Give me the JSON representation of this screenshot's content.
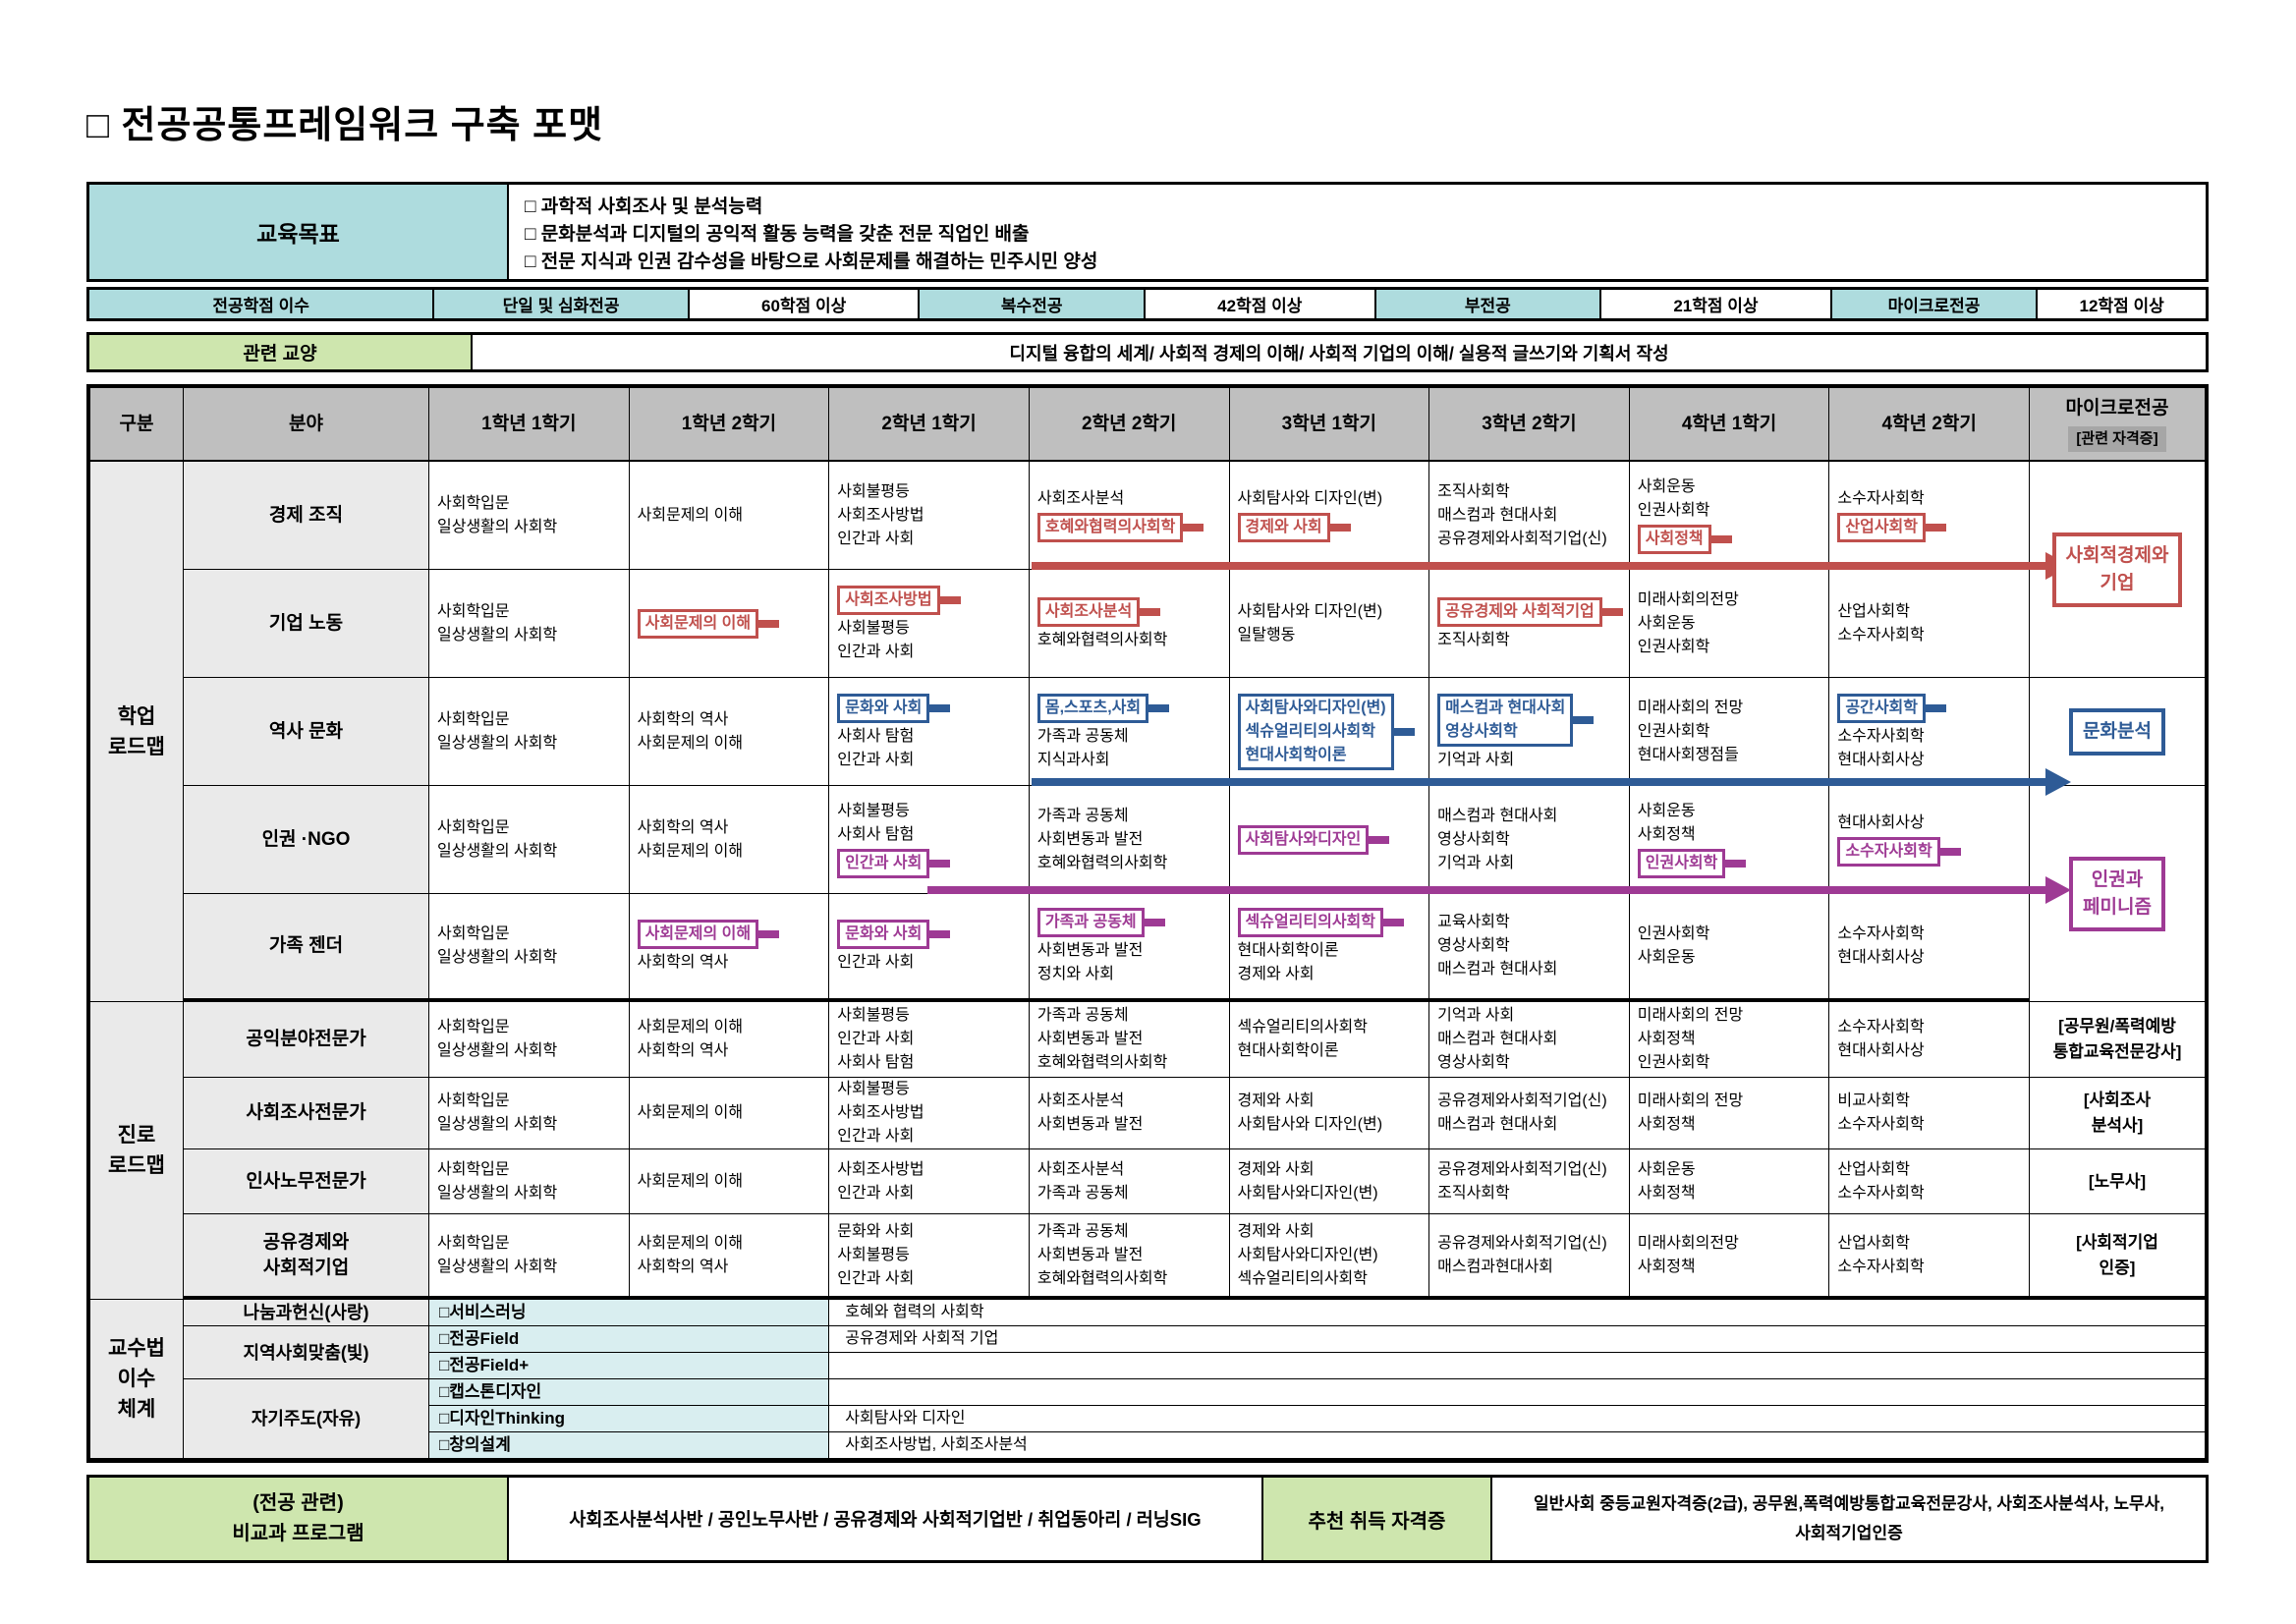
{
  "page": {
    "title": "□ 전공공통프레임워크 구축 포맷"
  },
  "colors": {
    "red": "#C0504D",
    "blue": "#2E5B96",
    "magenta": "#9E3A94",
    "teal": "#AEDCDE",
    "light_teal": "#D9EEF0",
    "green": "#CEE6AE",
    "header_gray": "#BFBFBF",
    "cell_gray": "#EAEAEA",
    "badge_gray": "#A6A6A6"
  },
  "goals": {
    "label": "교육목표",
    "items": [
      "□ 과학적 사회조사 및 분석능력",
      "□ 문화분석과 디지털의 공익적 활동 능력을 갖춘 전문 직업인 배출",
      "□ 전문 지식과 인권 감수성을 바탕으로 사회문제를 해결하는 민주시민 양성"
    ]
  },
  "credits": {
    "cells": [
      {
        "t": "전공학점 이수",
        "teal": true
      },
      {
        "t": "단일 및 심화전공",
        "teal": true
      },
      {
        "t": "60학점 이상"
      },
      {
        "t": "복수전공",
        "teal": true
      },
      {
        "t": "42학점 이상"
      },
      {
        "t": "부전공",
        "teal": true
      },
      {
        "t": "21학점 이상"
      },
      {
        "t": "마이크로전공",
        "teal": true
      },
      {
        "t": "12학점 이상"
      }
    ]
  },
  "liberal": {
    "label": "관련 교양",
    "text": "디지털 융합의 세계/ 사회적 경제의 이해/ 사회적 기업의 이해/ 실용적 글쓰기와 기획서 작성"
  },
  "roadmap": {
    "headers": [
      "구분",
      "분야",
      "1학년 1학기",
      "1학년 2학기",
      "2학년 1학기",
      "2학년 2학기",
      "3학년 1학기",
      "3학년 2학기",
      "4학년 1학기",
      "4학년 2학기"
    ],
    "micro_header": {
      "line1": "마이크로전공",
      "line2": "[관련 자격증]"
    },
    "sections": [
      {
        "label_lines": [
          "학업",
          "로드맵"
        ],
        "rows": [
          {
            "field_lines": [
              "경제 조직"
            ],
            "cells": [
              [
                {
                  "t": "사회학입문"
                },
                {
                  "t": "일상생활의 사회학"
                }
              ],
              [
                {
                  "t": "사회문제의 이해"
                }
              ],
              [
                {
                  "t": "사회불평등"
                },
                {
                  "t": "사회조사방법"
                },
                {
                  "t": "인간과 사회"
                }
              ],
              [
                {
                  "t": "사회조사분석"
                },
                {
                  "t": "호혜와협력의사회학",
                  "hl": "red"
                }
              ],
              [
                {
                  "t": "사회탐사와 디자인(변)"
                },
                {
                  "t": "경제와 사회",
                  "hl": "red"
                }
              ],
              [
                {
                  "t": "조직사회학"
                },
                {
                  "t": "매스컴과 현대사회"
                },
                {
                  "t": "공유경제와사회적기업(신)"
                }
              ],
              [
                {
                  "t": "사회운동"
                },
                {
                  "t": "인권사회학"
                },
                {
                  "t": "사회정책",
                  "hl": "red"
                }
              ],
              [
                {
                  "t": "소수자사회학"
                },
                {
                  "t": "산업사회학",
                  "hl": "red"
                }
              ]
            ],
            "micro": {
              "style": "box",
              "color": "red",
              "lines": [
                "사회적경제와",
                "기업"
              ],
              "span": 2
            }
          },
          {
            "field_lines": [
              "기업 노동"
            ],
            "cells": [
              [
                {
                  "t": "사회학입문"
                },
                {
                  "t": "일상생활의 사회학"
                }
              ],
              [
                {
                  "t": "사회문제의 이해",
                  "hl": "red"
                }
              ],
              [
                {
                  "t": "사회조사방법",
                  "hl": "red"
                },
                {
                  "t": "사회불평등"
                },
                {
                  "t": "인간과 사회"
                }
              ],
              [
                {
                  "t": "사회조사분석",
                  "hl": "red"
                },
                {
                  "t": "호혜와협력의사회학"
                }
              ],
              [
                {
                  "t": "사회탐사와 디자인(변)"
                },
                {
                  "t": "일탈행동"
                }
              ],
              [
                {
                  "t": "공유경제와 사회적기업",
                  "hl": "red"
                },
                {
                  "t": "조직사회학"
                }
              ],
              [
                {
                  "t": "미래사회의전망"
                },
                {
                  "t": "사회운동"
                },
                {
                  "t": "인권사회학"
                }
              ],
              [
                {
                  "t": "산업사회학"
                },
                {
                  "t": "소수자사회학"
                }
              ]
            ],
            "micro": null
          },
          {
            "field_lines": [
              "역사 문화"
            ],
            "cells": [
              [
                {
                  "t": "사회학입문"
                },
                {
                  "t": "일상생활의 사회학"
                }
              ],
              [
                {
                  "t": "사회학의 역사"
                },
                {
                  "t": "사회문제의 이해"
                }
              ],
              [
                {
                  "t": "문화와 사회",
                  "hl": "blue"
                },
                {
                  "t": "사회사 탐험"
                },
                {
                  "t": "인간과 사회"
                }
              ],
              [
                {
                  "t": "몸,스포츠,사회",
                  "hl": "blue"
                },
                {
                  "t": "가족과 공동체"
                },
                {
                  "t": "지식과사회"
                }
              ],
              [
                {
                  "t": [
                    "사회탐사와디자인(변)",
                    "섹슈얼리티의사회학",
                    "현대사회학이론"
                  ],
                  "hl": "blue"
                }
              ],
              [
                {
                  "t": [
                    "매스컴과 현대사회",
                    "영상사회학"
                  ],
                  "hl": "blue"
                },
                {
                  "t": "기억과 사회"
                }
              ],
              [
                {
                  "t": "미래사회의 전망"
                },
                {
                  "t": "인권사회학"
                },
                {
                  "t": "현대사회쟁점들"
                }
              ],
              [
                {
                  "t": "공간사회학",
                  "hl": "blue"
                },
                {
                  "t": "소수자사회학"
                },
                {
                  "t": "현대사회사상"
                }
              ]
            ],
            "micro": {
              "style": "box",
              "color": "blue",
              "lines": [
                "문화분석"
              ],
              "span": 1
            }
          },
          {
            "field_lines": [
              "인권 ·NGO"
            ],
            "cells": [
              [
                {
                  "t": "사회학입문"
                },
                {
                  "t": "일상생활의 사회학"
                }
              ],
              [
                {
                  "t": "사회학의 역사"
                },
                {
                  "t": "사회문제의 이해"
                }
              ],
              [
                {
                  "t": "사회불평등"
                },
                {
                  "t": "사회사 탐험"
                },
                {
                  "t": "인간과 사회",
                  "hl": "magenta"
                }
              ],
              [
                {
                  "t": "가족과 공동체"
                },
                {
                  "t": "사회변동과 발전"
                },
                {
                  "t": "호혜와협력의사회학"
                }
              ],
              [
                {
                  "t": "사회탐사와디자인",
                  "hl": "magenta"
                }
              ],
              [
                {
                  "t": "매스컴과 현대사회"
                },
                {
                  "t": "영상사회학"
                },
                {
                  "t": "기억과 사회"
                }
              ],
              [
                {
                  "t": "사회운동"
                },
                {
                  "t": "사회정책"
                },
                {
                  "t": "인권사회학",
                  "hl": "magenta"
                }
              ],
              [
                {
                  "t": "현대사회사상"
                },
                {
                  "t": "소수자사회학",
                  "hl": "magenta"
                }
              ]
            ],
            "micro": {
              "style": "box",
              "color": "magenta",
              "lines": [
                "인권과",
                "페미니즘"
              ],
              "span": 2
            }
          },
          {
            "field_lines": [
              "가족 젠더"
            ],
            "cells": [
              [
                {
                  "t": "사회학입문"
                },
                {
                  "t": "일상생활의 사회학"
                }
              ],
              [
                {
                  "t": "사회문제의 이해",
                  "hl": "magenta"
                },
                {
                  "t": "사회학의 역사"
                }
              ],
              [
                {
                  "t": "문화와 사회",
                  "hl": "magenta"
                },
                {
                  "t": "인간과 사회"
                }
              ],
              [
                {
                  "t": "가족과 공동체",
                  "hl": "magenta"
                },
                {
                  "t": "사회변동과 발전"
                },
                {
                  "t": "정치와 사회"
                }
              ],
              [
                {
                  "t": "섹슈얼리티의사회학",
                  "hl": "magenta"
                },
                {
                  "t": "현대사회학이론"
                },
                {
                  "t": "경제와 사회"
                }
              ],
              [
                {
                  "t": "교육사회학"
                },
                {
                  "t": "영상사회학"
                },
                {
                  "t": "매스컴과 현대사회"
                }
              ],
              [
                {
                  "t": "인권사회학"
                },
                {
                  "t": "사회운동"
                }
              ],
              [
                {
                  "t": "소수자사회학"
                },
                {
                  "t": "현대사회사상"
                }
              ]
            ],
            "micro": null
          }
        ]
      },
      {
        "label_lines": [
          "진로",
          "로드맵"
        ],
        "rows": [
          {
            "field_lines": [
              "공익분야전문가"
            ],
            "cells": [
              [
                {
                  "t": "사회학입문"
                },
                {
                  "t": "일상생활의 사회학"
                }
              ],
              [
                {
                  "t": "사회문제의 이해"
                },
                {
                  "t": "사회학의 역사"
                }
              ],
              [
                {
                  "t": "사회불평등"
                },
                {
                  "t": "인간과 사회"
                },
                {
                  "t": "사회사 탐험"
                }
              ],
              [
                {
                  "t": "가족과 공동체"
                },
                {
                  "t": "사회변동과 발전"
                },
                {
                  "t": "호혜와협력의사회학"
                }
              ],
              [
                {
                  "t": "섹슈얼리티의사회학"
                },
                {
                  "t": "현대사회학이론"
                }
              ],
              [
                {
                  "t": "기억과 사회"
                },
                {
                  "t": "매스컴과 현대사회"
                },
                {
                  "t": "영상사회학"
                }
              ],
              [
                {
                  "t": "미래사회의 전망"
                },
                {
                  "t": "사회정책"
                },
                {
                  "t": "인권사회학"
                }
              ],
              [
                {
                  "t": "소수자사회학"
                },
                {
                  "t": "현대사회사상"
                }
              ]
            ],
            "micro": {
              "style": "text",
              "lines": [
                "[공무원/폭력예방",
                "통합교육전문강사]"
              ],
              "span": 1
            }
          },
          {
            "field_lines": [
              "사회조사전문가"
            ],
            "cells": [
              [
                {
                  "t": "사회학입문"
                },
                {
                  "t": "일상생활의 사회학"
                }
              ],
              [
                {
                  "t": "사회문제의 이해"
                }
              ],
              [
                {
                  "t": "사회불평등"
                },
                {
                  "t": "사회조사방법"
                },
                {
                  "t": "인간과 사회"
                }
              ],
              [
                {
                  "t": "사회조사분석"
                },
                {
                  "t": "사회변동과 발전"
                }
              ],
              [
                {
                  "t": "경제와 사회"
                },
                {
                  "t": "사회탐사와 디자인(변)"
                }
              ],
              [
                {
                  "t": "공유경제와사회적기업(신)"
                },
                {
                  "t": "매스컴과 현대사회"
                }
              ],
              [
                {
                  "t": "미래사회의 전망"
                },
                {
                  "t": "사회정책"
                }
              ],
              [
                {
                  "t": "비교사회학"
                },
                {
                  "t": "소수자사회학"
                }
              ]
            ],
            "micro": {
              "style": "text",
              "lines": [
                "[사회조사",
                "분석사]"
              ],
              "span": 1
            }
          },
          {
            "field_lines": [
              "인사노무전문가"
            ],
            "cells": [
              [
                {
                  "t": "사회학입문"
                },
                {
                  "t": "일상생활의 사회학"
                }
              ],
              [
                {
                  "t": "사회문제의 이해"
                }
              ],
              [
                {
                  "t": "사회조사방법"
                },
                {
                  "t": "인간과 사회"
                }
              ],
              [
                {
                  "t": "사회조사분석"
                },
                {
                  "t": "가족과 공동체"
                }
              ],
              [
                {
                  "t": "경제와 사회"
                },
                {
                  "t": "사회탐사와디자인(변)"
                }
              ],
              [
                {
                  "t": "공유경제와사회적기업(신)"
                },
                {
                  "t": "조직사회학"
                }
              ],
              [
                {
                  "t": "사회운동"
                },
                {
                  "t": "사회정책"
                }
              ],
              [
                {
                  "t": "산업사회학"
                },
                {
                  "t": "소수자사회학"
                }
              ]
            ],
            "micro": {
              "style": "text",
              "lines": [
                "[노무사]"
              ],
              "span": 1
            }
          },
          {
            "field_lines": [
              "공유경제와",
              "사회적기업"
            ],
            "cells": [
              [
                {
                  "t": "사회학입문"
                },
                {
                  "t": "일상생활의 사회학"
                }
              ],
              [
                {
                  "t": "사회문제의 이해"
                },
                {
                  "t": "사회학의 역사"
                }
              ],
              [
                {
                  "t": "문화와 사회"
                },
                {
                  "t": "사회불평등"
                },
                {
                  "t": "인간과 사회"
                }
              ],
              [
                {
                  "t": "가족과 공동체"
                },
                {
                  "t": "사회변동과 발전"
                },
                {
                  "t": "호혜와협력의사회학"
                }
              ],
              [
                {
                  "t": "경제와 사회"
                },
                {
                  "t": "사회탐사와디자인(변)"
                },
                {
                  "t": "섹슈얼리티의사회학"
                }
              ],
              [
                {
                  "t": "공유경제와사회적기업(신)"
                },
                {
                  "t": "매스컴과현대사회"
                }
              ],
              [
                {
                  "t": "미래사회의전망"
                },
                {
                  "t": "사회정책"
                }
              ],
              [
                {
                  "t": "산업사회학"
                },
                {
                  "t": "소수자사회학"
                }
              ]
            ],
            "micro": {
              "style": "text",
              "lines": [
                "[사회적기업",
                "인증]"
              ],
              "span": 1
            }
          }
        ]
      }
    ],
    "teaching": {
      "label_lines": [
        "교수법",
        "이수",
        "체계"
      ],
      "groups": [
        {
          "name": "나눔과헌신(사랑)",
          "rows": [
            {
              "method": "□서비스러닝",
              "content": "호혜와 협력의 사회학"
            }
          ]
        },
        {
          "name": "지역사회맞춤(빛)",
          "rows": [
            {
              "method": "□전공Field",
              "content": "공유경제와 사회적 기업"
            },
            {
              "method": "□전공Field+",
              "content": ""
            }
          ]
        },
        {
          "name": "자기주도(자유)",
          "rows": [
            {
              "method": "□캡스톤디자인",
              "content": ""
            },
            {
              "method": "□디자인Thinking",
              "content": "사회탐사와 디자인"
            },
            {
              "method": "□창의설계",
              "content": "사회조사방법, 사회조사분석"
            }
          ]
        }
      ]
    }
  },
  "bottom": {
    "label_lines": [
      "(전공 관련)",
      "비교과 프로그램"
    ],
    "programs": "사회조사분석사반 / 공인노무사반 / 공유경제와 사회적기업반 / 취업동아리 / 러닝SIG",
    "cert_label": "추천 취득 자격증",
    "cert_lines": [
      "일반사회 중등교원자격증(2급), 공무원,폭력예방통합교육전문강사, 사회조사분석사, 노무사,",
      "사회적기업인증"
    ]
  }
}
